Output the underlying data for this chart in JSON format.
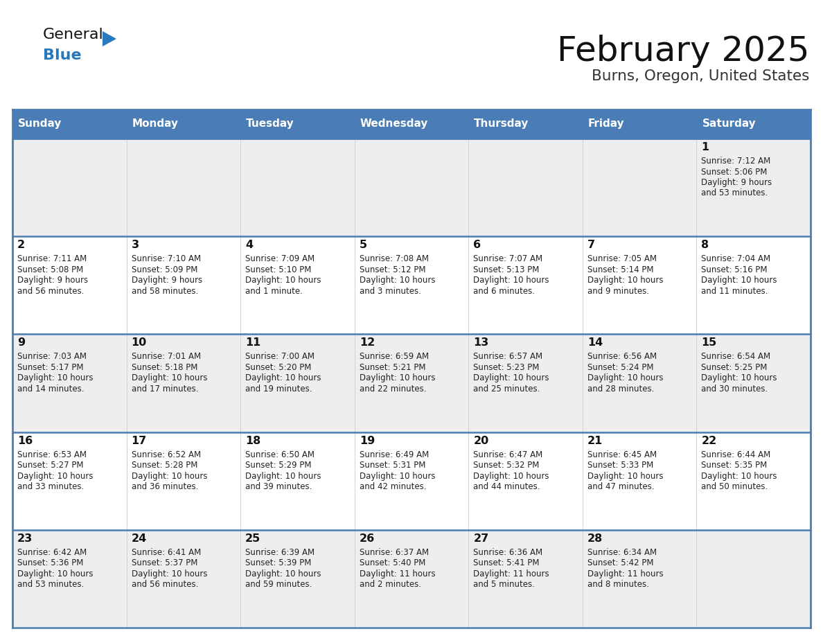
{
  "title": "February 2025",
  "subtitle": "Burns, Oregon, United States",
  "days_of_week": [
    "Sunday",
    "Monday",
    "Tuesday",
    "Wednesday",
    "Thursday",
    "Friday",
    "Saturday"
  ],
  "header_bg": "#4a7db5",
  "header_text_color": "#ffffff",
  "row_bg_odd": "#eeeeee",
  "row_bg_even": "#ffffff",
  "border_color": "#4a7db5",
  "cell_border_color": "#cccccc",
  "text_color": "#222222",
  "day_num_color": "#111111",
  "logo_general_color": "#111111",
  "logo_blue_color": "#2878c0",
  "calendar_data": [
    [
      null,
      null,
      null,
      null,
      null,
      null,
      {
        "day": 1,
        "sunrise": "7:12 AM",
        "sunset": "5:06 PM",
        "daylight_line1": "Daylight: 9 hours",
        "daylight_line2": "and 53 minutes."
      }
    ],
    [
      {
        "day": 2,
        "sunrise": "7:11 AM",
        "sunset": "5:08 PM",
        "daylight_line1": "Daylight: 9 hours",
        "daylight_line2": "and 56 minutes."
      },
      {
        "day": 3,
        "sunrise": "7:10 AM",
        "sunset": "5:09 PM",
        "daylight_line1": "Daylight: 9 hours",
        "daylight_line2": "and 58 minutes."
      },
      {
        "day": 4,
        "sunrise": "7:09 AM",
        "sunset": "5:10 PM",
        "daylight_line1": "Daylight: 10 hours",
        "daylight_line2": "and 1 minute."
      },
      {
        "day": 5,
        "sunrise": "7:08 AM",
        "sunset": "5:12 PM",
        "daylight_line1": "Daylight: 10 hours",
        "daylight_line2": "and 3 minutes."
      },
      {
        "day": 6,
        "sunrise": "7:07 AM",
        "sunset": "5:13 PM",
        "daylight_line1": "Daylight: 10 hours",
        "daylight_line2": "and 6 minutes."
      },
      {
        "day": 7,
        "sunrise": "7:05 AM",
        "sunset": "5:14 PM",
        "daylight_line1": "Daylight: 10 hours",
        "daylight_line2": "and 9 minutes."
      },
      {
        "day": 8,
        "sunrise": "7:04 AM",
        "sunset": "5:16 PM",
        "daylight_line1": "Daylight: 10 hours",
        "daylight_line2": "and 11 minutes."
      }
    ],
    [
      {
        "day": 9,
        "sunrise": "7:03 AM",
        "sunset": "5:17 PM",
        "daylight_line1": "Daylight: 10 hours",
        "daylight_line2": "and 14 minutes."
      },
      {
        "day": 10,
        "sunrise": "7:01 AM",
        "sunset": "5:18 PM",
        "daylight_line1": "Daylight: 10 hours",
        "daylight_line2": "and 17 minutes."
      },
      {
        "day": 11,
        "sunrise": "7:00 AM",
        "sunset": "5:20 PM",
        "daylight_line1": "Daylight: 10 hours",
        "daylight_line2": "and 19 minutes."
      },
      {
        "day": 12,
        "sunrise": "6:59 AM",
        "sunset": "5:21 PM",
        "daylight_line1": "Daylight: 10 hours",
        "daylight_line2": "and 22 minutes."
      },
      {
        "day": 13,
        "sunrise": "6:57 AM",
        "sunset": "5:23 PM",
        "daylight_line1": "Daylight: 10 hours",
        "daylight_line2": "and 25 minutes."
      },
      {
        "day": 14,
        "sunrise": "6:56 AM",
        "sunset": "5:24 PM",
        "daylight_line1": "Daylight: 10 hours",
        "daylight_line2": "and 28 minutes."
      },
      {
        "day": 15,
        "sunrise": "6:54 AM",
        "sunset": "5:25 PM",
        "daylight_line1": "Daylight: 10 hours",
        "daylight_line2": "and 30 minutes."
      }
    ],
    [
      {
        "day": 16,
        "sunrise": "6:53 AM",
        "sunset": "5:27 PM",
        "daylight_line1": "Daylight: 10 hours",
        "daylight_line2": "and 33 minutes."
      },
      {
        "day": 17,
        "sunrise": "6:52 AM",
        "sunset": "5:28 PM",
        "daylight_line1": "Daylight: 10 hours",
        "daylight_line2": "and 36 minutes."
      },
      {
        "day": 18,
        "sunrise": "6:50 AM",
        "sunset": "5:29 PM",
        "daylight_line1": "Daylight: 10 hours",
        "daylight_line2": "and 39 minutes."
      },
      {
        "day": 19,
        "sunrise": "6:49 AM",
        "sunset": "5:31 PM",
        "daylight_line1": "Daylight: 10 hours",
        "daylight_line2": "and 42 minutes."
      },
      {
        "day": 20,
        "sunrise": "6:47 AM",
        "sunset": "5:32 PM",
        "daylight_line1": "Daylight: 10 hours",
        "daylight_line2": "and 44 minutes."
      },
      {
        "day": 21,
        "sunrise": "6:45 AM",
        "sunset": "5:33 PM",
        "daylight_line1": "Daylight: 10 hours",
        "daylight_line2": "and 47 minutes."
      },
      {
        "day": 22,
        "sunrise": "6:44 AM",
        "sunset": "5:35 PM",
        "daylight_line1": "Daylight: 10 hours",
        "daylight_line2": "and 50 minutes."
      }
    ],
    [
      {
        "day": 23,
        "sunrise": "6:42 AM",
        "sunset": "5:36 PM",
        "daylight_line1": "Daylight: 10 hours",
        "daylight_line2": "and 53 minutes."
      },
      {
        "day": 24,
        "sunrise": "6:41 AM",
        "sunset": "5:37 PM",
        "daylight_line1": "Daylight: 10 hours",
        "daylight_line2": "and 56 minutes."
      },
      {
        "day": 25,
        "sunrise": "6:39 AM",
        "sunset": "5:39 PM",
        "daylight_line1": "Daylight: 10 hours",
        "daylight_line2": "and 59 minutes."
      },
      {
        "day": 26,
        "sunrise": "6:37 AM",
        "sunset": "5:40 PM",
        "daylight_line1": "Daylight: 11 hours",
        "daylight_line2": "and 2 minutes."
      },
      {
        "day": 27,
        "sunrise": "6:36 AM",
        "sunset": "5:41 PM",
        "daylight_line1": "Daylight: 11 hours",
        "daylight_line2": "and 5 minutes."
      },
      {
        "day": 28,
        "sunrise": "6:34 AM",
        "sunset": "5:42 PM",
        "daylight_line1": "Daylight: 11 hours",
        "daylight_line2": "and 8 minutes."
      },
      null
    ]
  ]
}
